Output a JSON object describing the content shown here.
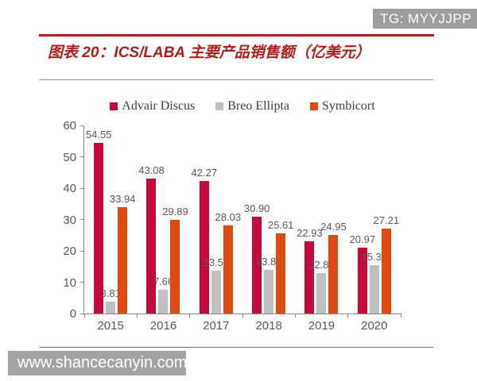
{
  "badges": {
    "tg": "TG: MYYJJPP",
    "site": "www.shancecanyin.com"
  },
  "header": {
    "title": "图表 20：ICS/LABA 主要产品销售额（亿美元）"
  },
  "colors": {
    "advair": "#c40a3c",
    "breo": "#bfbfbf",
    "symbicort": "#e2490d",
    "title_red": "#b21d1d",
    "axis_gray": "#868686",
    "label_gray": "#595959",
    "badge_gray": "#9d9d9d"
  },
  "chart_data": {
    "type": "bar",
    "title": "图表 20：ICS/LABA 主要产品销售额（亿美元）",
    "categories": [
      "2015",
      "2016",
      "2017",
      "2018",
      "2019",
      "2020"
    ],
    "series": [
      {
        "name": "Advair Discus",
        "color": "#c40a3c",
        "values": [
          54.55,
          43.08,
          42.27,
          30.9,
          22.93,
          20.97
        ]
      },
      {
        "name": "Breo Ellipta",
        "color": "#bfbfbf",
        "values": [
          3.81,
          7.66,
          13.59,
          13.89,
          12.87,
          15.36
        ]
      },
      {
        "name": "Symbicort",
        "color": "#e2490d",
        "values": [
          33.94,
          29.89,
          28.03,
          25.61,
          24.95,
          27.21
        ]
      }
    ],
    "xlabel": "",
    "ylabel": "",
    "ylim": [
      0,
      60
    ],
    "yticks": [
      0,
      10,
      20,
      30,
      40,
      50,
      60
    ],
    "grid": false,
    "legend_position": "top",
    "data_labels": true,
    "data_label_decimals": 2
  }
}
